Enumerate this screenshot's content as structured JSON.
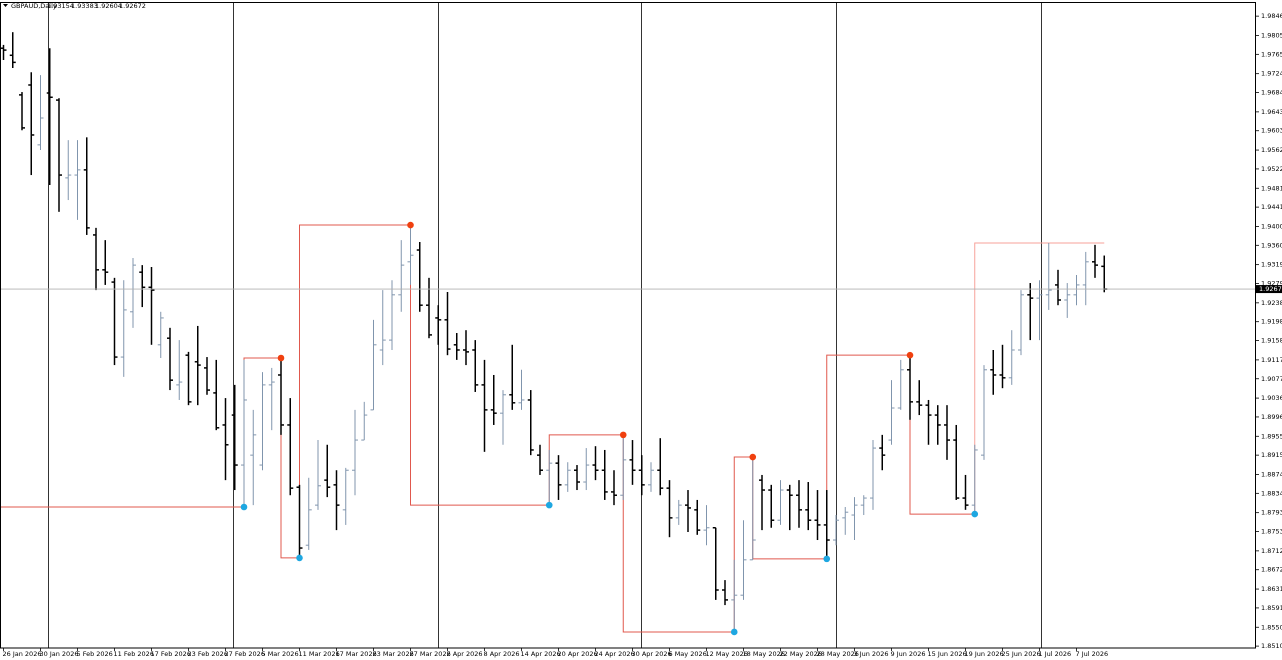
{
  "chart_data": {
    "type": "ohlc",
    "title": "GBPAUD,Daily",
    "categories": [
      "26 Jan 2026",
      null,
      null,
      null,
      "30 Jan 2026",
      null,
      null,
      null,
      "5 Feb 2026",
      null,
      null,
      null,
      "11 Feb 2026",
      null,
      null,
      null,
      "17 Feb 2026",
      null,
      null,
      null,
      "23 Feb 2026",
      null,
      null,
      null,
      "27 Feb 2026",
      null,
      null,
      null,
      "5 Mar 2026",
      null,
      null,
      null,
      "11 Mar 2026",
      null,
      null,
      null,
      "17 Mar 2026",
      null,
      null,
      null,
      "23 Mar 2026",
      null,
      null,
      null,
      "27 Mar 2026",
      null,
      null,
      null,
      "2 Apr 2026",
      null,
      null,
      null,
      "8 Apr 2026",
      null,
      null,
      null,
      "14 Apr 2026",
      null,
      null,
      null,
      "20 Apr 2026",
      null,
      null,
      null,
      "24 Apr 2026",
      null,
      null,
      null,
      "30 Apr 2026",
      null,
      null,
      null,
      "6 May 2026",
      null,
      null,
      null,
      "12 May 2026",
      null,
      null,
      null,
      "18 May 2026",
      null,
      null,
      null,
      "22 May 2026",
      null,
      null,
      null,
      "28 May 2026",
      null,
      null,
      null,
      "3 Jun 2026",
      null,
      null,
      null,
      "9 Jun 2026",
      null,
      null,
      null,
      "15 Jun 2026",
      null,
      null,
      null,
      "19 Jun 2026",
      null,
      null,
      null,
      "25 Jun 2026",
      null,
      null,
      null,
      "1 Jul 2026",
      null,
      null,
      null,
      "7 Jul 2026",
      null,
      null,
      null
    ],
    "open": [
      1.9778,
      1.9763,
      1.9679,
      1.97,
      1.9573,
      1.9683,
      1.9668,
      1.9503,
      1.9509,
      1.952,
      1.9382,
      1.9308,
      1.9282,
      1.9123,
      1.9219,
      1.9303,
      1.9271,
      1.9149,
      1.9163,
      1.9064,
      1.9127,
      1.9113,
      1.91,
      1.9047,
      1.8979,
      1.9,
      1.8894,
      1.8915,
      1.8894,
      1.9064,
      1.9085,
      1.8979,
      1.8847,
      1.8724,
      1.8809,
      1.8862,
      1.8852,
      1.8799,
      1.8883,
      1.8947,
      1.9011,
      1.9138,
      1.9159,
      1.9255,
      1.9325,
      1.935,
      1.9233,
      1.9206,
      1.9202,
      1.9149,
      1.9138,
      1.9138,
      1.9064,
      1.9011,
      1.9004,
      1.9043,
      1.9026,
      1.9032,
      1.8915,
      1.8883,
      1.8898,
      1.8852,
      1.8883,
      1.8858,
      1.8894,
      1.8883,
      1.8837,
      1.883,
      1.8905,
      1.8883,
      1.8852,
      1.8883,
      1.8845,
      1.8782,
      1.8809,
      1.8799,
      1.8756,
      1.8761,
      1.8629,
      1.8608,
      1.8618,
      1.8693,
      1.8862,
      1.8841,
      1.8777,
      1.8841,
      1.883,
      1.8799,
      1.8777,
      1.8767,
      1.8735,
      1.8782,
      1.8788,
      1.8809,
      1.8824,
      1.893,
      1.8947,
      1.9015,
      1.9096,
      1.9028,
      1.9021,
      1.9,
      1.8979,
      1.8947,
      1.8824,
      1.8809,
      1.8915,
      1.9096,
      1.9085,
      1.9079,
      1.9138,
      1.9255,
      1.9248,
      1.9255,
      1.9276,
      1.9244,
      1.9255,
      1.9276,
      1.9325,
      1.93154
    ],
    "high": [
      1.9785,
      1.9812,
      1.9685,
      1.9727,
      1.9721,
      1.9778,
      1.9672,
      1.9583,
      1.9583,
      1.9589,
      1.9397,
      1.9371,
      1.9291,
      1.9286,
      1.9333,
      1.9318,
      1.9314,
      1.9219,
      1.9185,
      1.9159,
      1.9134,
      1.9189,
      1.9123,
      1.9117,
      1.9036,
      1.9064,
      1.9117,
      1.9011,
      1.9091,
      1.91,
      1.9121,
      1.9036,
      1.8852,
      1.8867,
      1.8947,
      1.8937,
      1.8883,
      1.8888,
      1.9011,
      1.9028,
      1.9202,
      1.9265,
      1.9286,
      1.9371,
      1.9403,
      1.9367,
      1.9291,
      1.9233,
      1.9261,
      1.9174,
      1.918,
      1.9159,
      1.9117,
      1.9085,
      1.9053,
      1.9149,
      1.9096,
      1.9053,
      1.8937,
      1.8926,
      1.8915,
      1.89,
      1.8894,
      1.893,
      1.8934,
      1.8926,
      1.8883,
      1.8958,
      1.8947,
      1.8915,
      1.89,
      1.8951,
      1.8862,
      1.882,
      1.8841,
      1.882,
      1.8809,
      1.8761,
      1.865,
      1.8693,
      1.8777,
      1.8911,
      1.8873,
      1.8852,
      1.8862,
      1.8852,
      1.8862,
      1.8858,
      1.8841,
      1.8841,
      1.8788,
      1.8805,
      1.8826,
      1.883,
      1.8947,
      1.8958,
      1.9074,
      1.9117,
      1.9127,
      1.9074,
      1.9032,
      1.9021,
      1.9021,
      1.8979,
      1.8873,
      1.8937,
      1.9106,
      1.9138,
      1.9149,
      1.918,
      1.9265,
      1.928,
      1.9286,
      1.9365,
      1.9308,
      1.928,
      1.9297,
      1.9346,
      1.9361,
      1.93383
    ],
    "low": [
      1.9753,
      1.9736,
      1.9604,
      1.9509,
      1.9562,
      1.9488,
      1.9431,
      1.9456,
      1.9414,
      1.9382,
      1.9265,
      1.9276,
      1.9106,
      1.9081,
      1.9185,
      1.9229,
      1.9149,
      1.9121,
      1.9053,
      1.9032,
      1.9021,
      1.9021,
      1.9043,
      1.8968,
      1.8862,
      1.8841,
      1.8805,
      1.8809,
      1.8883,
      1.8968,
      1.8958,
      1.883,
      1.8697,
      1.8714,
      1.8799,
      1.8826,
      1.8756,
      1.8767,
      1.883,
      1.8947,
      1.9011,
      1.9106,
      1.9138,
      1.9219,
      1.9276,
      1.9219,
      1.9163,
      1.9149,
      1.9127,
      1.9117,
      1.9106,
      1.9049,
      1.8922,
      1.8979,
      1.8937,
      1.9011,
      1.9011,
      1.8915,
      1.8873,
      1.8809,
      1.882,
      1.8837,
      1.8841,
      1.8841,
      1.8862,
      1.882,
      1.8809,
      1.882,
      1.8852,
      1.883,
      1.8837,
      1.883,
      1.8741,
      1.8767,
      1.8752,
      1.8746,
      1.8724,
      1.8608,
      1.8597,
      1.854,
      1.8608,
      1.8693,
      1.8756,
      1.8761,
      1.8767,
      1.8756,
      1.8761,
      1.8756,
      1.8735,
      1.8695,
      1.8724,
      1.8746,
      1.8735,
      1.8788,
      1.8799,
      1.8883,
      1.8937,
      1.9011,
      1.899,
      1.9,
      1.8937,
      1.8937,
      1.8905,
      1.882,
      1.8799,
      1.879,
      1.8905,
      1.9043,
      1.9057,
      1.9064,
      1.9127,
      1.9159,
      1.9159,
      1.9223,
      1.9233,
      1.9206,
      1.9233,
      1.9233,
      1.9291,
      1.92604
    ],
    "close": [
      1.9774,
      1.9748,
      1.9609,
      1.9594,
      1.963,
      1.9674,
      1.9509,
      1.9509,
      1.952,
      1.9397,
      1.9308,
      1.9303,
      1.9123,
      1.9223,
      1.9318,
      1.9271,
      1.9265,
      1.9206,
      1.9074,
      1.907,
      1.9028,
      1.9106,
      1.9053,
      1.8973,
      1.8937,
      1.8894,
      1.9032,
      1.8958,
      1.9064,
      1.907,
      1.8979,
      1.8845,
      1.8718,
      1.8799,
      1.885,
      1.8847,
      1.8809,
      1.8883,
      1.8947,
      1.9,
      1.9149,
      1.9159,
      1.9255,
      1.9318,
      1.9339,
      1.9233,
      1.917,
      1.9202,
      1.914,
      1.9138,
      1.9134,
      1.9064,
      1.9011,
      1.9004,
      1.9043,
      1.9026,
      1.9032,
      1.8926,
      1.8883,
      1.8898,
      1.8852,
      1.8883,
      1.8858,
      1.8894,
      1.8883,
      1.8837,
      1.883,
      1.8905,
      1.8883,
      1.8852,
      1.8883,
      1.8845,
      1.8782,
      1.8809,
      1.8803,
      1.8756,
      1.8761,
      1.8629,
      1.8608,
      1.8618,
      1.8693,
      1.8735,
      1.8841,
      1.8777,
      1.8841,
      1.883,
      1.8799,
      1.8777,
      1.8767,
      1.8735,
      1.8777,
      1.8794,
      1.8809,
      1.8824,
      1.893,
      1.8915,
      1.9015,
      1.9096,
      1.9028,
      1.9021,
      1.9,
      1.8979,
      1.8947,
      1.8824,
      1.8809,
      1.8926,
      1.9096,
      1.9085,
      1.9079,
      1.9138,
      1.9255,
      1.9248,
      1.9255,
      1.9265,
      1.9244,
      1.9255,
      1.9276,
      1.9325,
      1.9318,
      1.92672
    ],
    "up_color": "#8095ad",
    "down_color": "#000000",
    "swings": {
      "values": [
        null,
        null,
        null,
        null,
        null,
        null,
        null,
        null,
        null,
        null,
        null,
        null,
        null,
        null,
        null,
        null,
        null,
        null,
        null,
        null,
        null,
        null,
        null,
        null,
        null,
        null,
        1.8805,
        null,
        null,
        null,
        1.9121,
        null,
        1.8697,
        null,
        null,
        null,
        null,
        null,
        null,
        null,
        null,
        null,
        null,
        null,
        1.9403,
        null,
        null,
        null,
        null,
        null,
        null,
        null,
        null,
        null,
        null,
        null,
        null,
        null,
        null,
        1.8809,
        null,
        null,
        null,
        null,
        null,
        null,
        null,
        1.8958,
        null,
        null,
        null,
        null,
        null,
        null,
        null,
        null,
        null,
        null,
        null,
        1.854,
        null,
        1.8911,
        null,
        null,
        null,
        null,
        null,
        null,
        null,
        1.8695,
        null,
        null,
        null,
        null,
        null,
        null,
        null,
        null,
        1.9127,
        null,
        null,
        null,
        null,
        null,
        null,
        1.879,
        null,
        null,
        null,
        null,
        null,
        null,
        null,
        null,
        null,
        null,
        null,
        null,
        null,
        1.9365
      ],
      "dot_colors": [
        "#1ea7e1",
        "#f0400f",
        "#1ea7e1",
        "#f0400f",
        "#1ea7e1",
        "#f0400f",
        "#1ea7e1",
        "#f0400f",
        "#1ea7e1",
        "#f0400f",
        "#1ea7e1",
        null
      ],
      "line_color": "#e0584d",
      "last_line_color": "#f7a29a"
    },
    "current_line_color": "#b0b0b0",
    "ylim": [
      1.8506,
      1.9876
    ],
    "yticks": [
      {
        "value": 1.9846,
        "label": "1.98460"
      },
      {
        "value": 1.9805,
        "label": "1.98050"
      },
      {
        "value": 1.9765,
        "label": "1.97650"
      },
      {
        "value": 1.9724,
        "label": "1.97240"
      },
      {
        "value": 1.9684,
        "label": "1.96840"
      },
      {
        "value": 1.9643,
        "label": "1.96430"
      },
      {
        "value": 1.9603,
        "label": "1.96030"
      },
      {
        "value": 1.9562,
        "label": "1.95620"
      },
      {
        "value": 1.9522,
        "label": "1.95220"
      },
      {
        "value": 1.9481,
        "label": "1.94810"
      },
      {
        "value": 1.9441,
        "label": "1.94410"
      },
      {
        "value": 1.94,
        "label": "1.94000"
      },
      {
        "value": 1.936,
        "label": "1.93600"
      },
      {
        "value": 1.9319,
        "label": "1.93190"
      },
      {
        "value": 1.9279,
        "label": "1.92790"
      },
      {
        "value": 1.9238,
        "label": "1.92380"
      },
      {
        "value": 1.9198,
        "label": "1.91980"
      },
      {
        "value": 1.9158,
        "label": "1.91580"
      },
      {
        "value": 1.9117,
        "label": "1.91170"
      },
      {
        "value": 1.9077,
        "label": "1.90770"
      },
      {
        "value": 1.9036,
        "label": "1.90360"
      },
      {
        "value": 1.8996,
        "label": "1.89960"
      },
      {
        "value": 1.8955,
        "label": "1.89550"
      },
      {
        "value": 1.8915,
        "label": "1.89150"
      },
      {
        "value": 1.8874,
        "label": "1.88740"
      },
      {
        "value": 1.8834,
        "label": "1.88340"
      },
      {
        "value": 1.8793,
        "label": "1.87930"
      },
      {
        "value": 1.8753,
        "label": "1.87530"
      },
      {
        "value": 1.8712,
        "label": "1.87120"
      },
      {
        "value": 1.8672,
        "label": "1.86720"
      },
      {
        "value": 1.8631,
        "label": "1.86310"
      },
      {
        "value": 1.8591,
        "label": "1.85910"
      },
      {
        "value": 1.855,
        "label": "1.85500"
      },
      {
        "value": 1.851,
        "label": "1.85100"
      }
    ]
  }
}
